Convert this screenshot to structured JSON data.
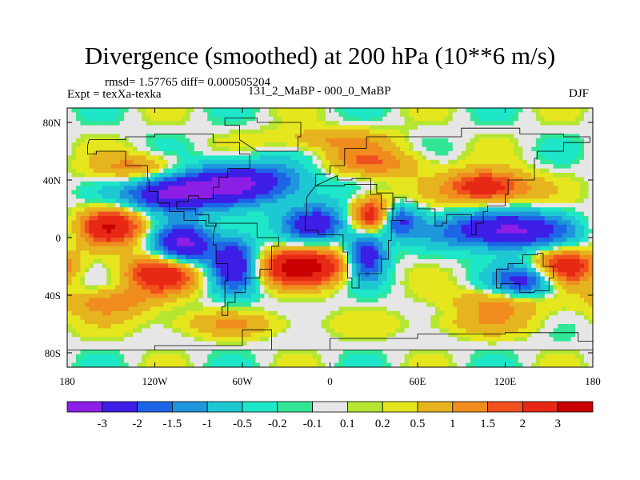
{
  "chart_data": {
    "type": "heatmap",
    "title": "Divergence (smoothed) at 200 hPa (10**6 m/s)",
    "stats": "rmsd= 1.57765 diff= 0.000505204",
    "experiment": "Expt = texXa-texka",
    "case": "131_2_MaBP - 000_0_MaBP",
    "season": "DJF",
    "xlim": [
      -180,
      180
    ],
    "ylim": [
      -90,
      90
    ],
    "x_ticks": [
      {
        "value": -180,
        "label": "180"
      },
      {
        "value": -120,
        "label": "120W"
      },
      {
        "value": -60,
        "label": "60W"
      },
      {
        "value": 0,
        "label": "0"
      },
      {
        "value": 60,
        "label": "60E"
      },
      {
        "value": 120,
        "label": "120E"
      },
      {
        "value": 180,
        "label": "180"
      }
    ],
    "y_ticks": [
      {
        "value": 80,
        "label": "80N"
      },
      {
        "value": 40,
        "label": "40N"
      },
      {
        "value": 0,
        "label": "0"
      },
      {
        "value": -40,
        "label": "40S"
      },
      {
        "value": -80,
        "label": "80S"
      }
    ],
    "levels": [
      "-3",
      "-2",
      "-1.5",
      "-1",
      "-0.5",
      "-0.2",
      "-0.1",
      "0.1",
      "0.2",
      "0.5",
      "1",
      "1.5",
      "2",
      "3"
    ],
    "level_values": [
      -3,
      -2,
      -1.5,
      -1,
      -0.5,
      -0.2,
      -0.1,
      0.1,
      0.2,
      0.5,
      1,
      1.5,
      2,
      3
    ],
    "colors": [
      "#8c1ee6",
      "#3c1ee6",
      "#1e64e6",
      "#1e96dc",
      "#1ec8d2",
      "#1ee6c8",
      "#32e696",
      "#e6e6e6",
      "#b4e632",
      "#e6e61e",
      "#e6b41e",
      "#f08c1e",
      "#f0501e",
      "#e62814",
      "#c80000"
    ],
    "features": [
      {
        "lon": -110,
        "lat": 30,
        "amp": -3.2,
        "sx": 22,
        "sy": 9
      },
      {
        "lon": -60,
        "lat": 38,
        "amp": -3.0,
        "sx": 30,
        "sy": 10
      },
      {
        "lon": -100,
        "lat": -5,
        "amp": -3.2,
        "sx": 14,
        "sy": 10
      },
      {
        "lon": -65,
        "lat": -18,
        "amp": -3.2,
        "sx": 12,
        "sy": 13
      },
      {
        "lon": -10,
        "lat": 10,
        "amp": -2.6,
        "sx": 16,
        "sy": 9
      },
      {
        "lon": 25,
        "lat": -12,
        "amp": -3.0,
        "sx": 9,
        "sy": 12
      },
      {
        "lon": 45,
        "lat": 12,
        "amp": -2.8,
        "sx": 10,
        "sy": 8
      },
      {
        "lon": 120,
        "lat": 5,
        "amp": -3.4,
        "sx": 30,
        "sy": 9
      },
      {
        "lon": 135,
        "lat": -30,
        "amp": -2.6,
        "sx": 16,
        "sy": 9
      },
      {
        "lon": 80,
        "lat": 35,
        "amp": -1.2,
        "sx": 16,
        "sy": 8
      },
      {
        "lon": -150,
        "lat": 8,
        "amp": 3.0,
        "sx": 16,
        "sy": 9
      },
      {
        "lon": -115,
        "lat": -25,
        "amp": 2.8,
        "sx": 18,
        "sy": 9
      },
      {
        "lon": -20,
        "lat": -20,
        "amp": 3.6,
        "sx": 22,
        "sy": 9
      },
      {
        "lon": 30,
        "lat": 15,
        "amp": 3.2,
        "sx": 11,
        "sy": 9
      },
      {
        "lon": 100,
        "lat": 35,
        "amp": 3.2,
        "sx": 24,
        "sy": 8
      },
      {
        "lon": 160,
        "lat": -20,
        "amp": 2.8,
        "sx": 16,
        "sy": 9
      },
      {
        "lon": -130,
        "lat": 48,
        "amp": 1.4,
        "sx": 22,
        "sy": 7
      },
      {
        "lon": 30,
        "lat": 52,
        "amp": 1.4,
        "sx": 24,
        "sy": 7
      },
      {
        "lon": -150,
        "lat": -45,
        "amp": 1.3,
        "sx": 22,
        "sy": 7
      },
      {
        "lon": 120,
        "lat": -45,
        "amp": 1.3,
        "sx": 25,
        "sy": 7
      },
      {
        "lon": 0,
        "lat": 68,
        "amp": 1.0,
        "sx": 30,
        "sy": 6
      },
      {
        "lon": -70,
        "lat": -60,
        "amp": 0.8,
        "sx": 40,
        "sy": 6
      },
      {
        "lon": 100,
        "lat": -60,
        "amp": 0.6,
        "sx": 40,
        "sy": 6
      }
    ]
  }
}
